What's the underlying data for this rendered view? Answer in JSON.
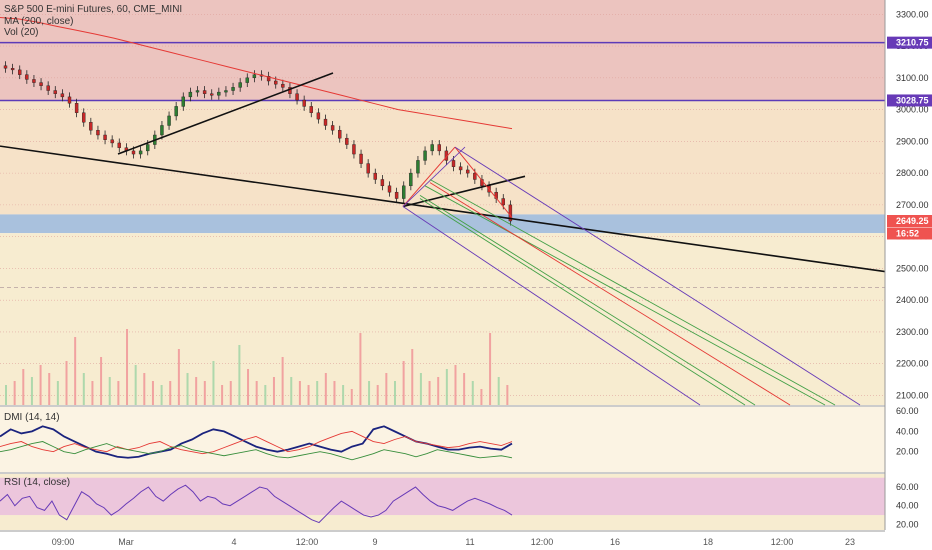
{
  "header": {
    "symbol_line": "S&P 500 E-mini Futures, 60, CME_MINI",
    "ma_label": "MA (200, close)",
    "vol_label": "Vol (20)"
  },
  "chart_data": [
    {
      "type": "candlestick",
      "title": "S&P 500 E-mini Futures, 60, CME_MINI",
      "price_axis_ticks": [
        3300,
        3200,
        3100,
        3000,
        2900,
        2800,
        2700,
        2600,
        2500,
        2400,
        2300,
        2200,
        2100
      ],
      "ylim": [
        2070,
        3345
      ],
      "price_tags": [
        {
          "label": "3210.75",
          "value": 3210.75,
          "color": "#673ab7"
        },
        {
          "label": "3028.75",
          "value": 3028.75,
          "color": "#673ab7"
        },
        {
          "label": "2649.25",
          "value": 2649.25,
          "color": "#ef5350"
        },
        {
          "label": "16:52",
          "value": 2610,
          "color": "#ef5350"
        }
      ],
      "horizontal_levels": [
        {
          "value": 3210.75,
          "color": "#5c3bb8",
          "style": "solid"
        },
        {
          "value": 3028.75,
          "color": "#5c3bb8",
          "style": "solid"
        }
      ],
      "zones": [
        {
          "from": 3028.75,
          "to": 3345,
          "color": "#ecc4bf"
        },
        {
          "from": 2670,
          "to": 3028.75,
          "color": "#f6e2c8"
        },
        {
          "from": 2611,
          "to": 2670,
          "color": "#a9c1dd"
        },
        {
          "from": 2310,
          "to": 2405,
          "color": "#a9c1dd"
        },
        {
          "from": 2070,
          "to": 2611,
          "color": "#f7ecd0"
        }
      ],
      "candles_close": [
        3130,
        3125,
        3110,
        3095,
        3085,
        3075,
        3060,
        3050,
        3040,
        3020,
        2990,
        2960,
        2935,
        2920,
        2905,
        2895,
        2880,
        2870,
        2860,
        2870,
        2890,
        2920,
        2950,
        2980,
        3010,
        3040,
        3055,
        3060,
        3050,
        3045,
        3055,
        3060,
        3070,
        3085,
        3100,
        3110,
        3105,
        3090,
        3080,
        3070,
        3050,
        3030,
        3010,
        2990,
        2970,
        2950,
        2935,
        2910,
        2890,
        2860,
        2830,
        2800,
        2780,
        2760,
        2740,
        2720,
        2760,
        2800,
        2840,
        2870,
        2890,
        2870,
        2840,
        2820,
        2810,
        2800,
        2780,
        2760,
        2740,
        2720,
        2700,
        2649.25
      ],
      "ma200": [
        3290,
        3285,
        3275,
        3262,
        3250,
        3238,
        3225,
        3210,
        3195,
        3180,
        3165,
        3150,
        3135,
        3120,
        3105,
        3090,
        3075,
        3060,
        3045,
        3030,
        3015,
        3000,
        2990,
        2980,
        2970,
        2960,
        2950,
        2940
      ],
      "volume": [
        0.25,
        0.3,
        0.45,
        0.35,
        0.5,
        0.4,
        0.3,
        0.55,
        0.85,
        0.4,
        0.3,
        0.6,
        0.35,
        0.3,
        0.95,
        0.5,
        0.4,
        0.3,
        0.25,
        0.3,
        0.7,
        0.4,
        0.35,
        0.3,
        0.55,
        0.25,
        0.3,
        0.75,
        0.45,
        0.3,
        0.25,
        0.35,
        0.6,
        0.35,
        0.3,
        0.25,
        0.3,
        0.4,
        0.3,
        0.25,
        0.2,
        0.9,
        0.3,
        0.25,
        0.4,
        0.3,
        0.55,
        0.7,
        0.4,
        0.3,
        0.35,
        0.45,
        0.5,
        0.4,
        0.3,
        0.2,
        0.9,
        0.35,
        0.25
      ]
    },
    {
      "type": "line",
      "title": "DMI (14, 14)",
      "axis_ticks": [
        60.0,
        40.0,
        20.0
      ],
      "ylim": [
        0,
        64
      ],
      "series": [
        {
          "color": "#1a237e",
          "values": [
            35,
            42,
            38,
            40,
            45,
            42,
            35,
            30,
            25,
            20,
            18,
            15,
            14,
            15,
            18,
            20,
            22,
            28,
            32,
            38,
            42,
            40,
            35,
            30,
            25,
            22,
            20,
            22,
            25,
            28,
            25,
            22,
            20,
            25,
            28,
            42,
            45,
            40,
            35,
            30,
            28,
            25,
            22,
            22,
            24,
            25,
            23,
            22,
            28
          ]
        },
        {
          "color": "#e53935",
          "values": [
            25,
            28,
            30,
            25,
            22,
            20,
            25,
            28,
            24,
            22,
            20,
            25,
            22,
            24,
            28,
            30,
            25,
            22,
            20,
            18,
            20,
            24,
            28,
            32,
            35,
            30,
            25,
            20,
            22,
            25,
            30,
            34,
            38,
            40,
            35,
            30,
            28,
            32,
            35,
            30,
            28,
            26,
            24,
            25,
            28,
            30,
            28,
            26,
            30
          ]
        },
        {
          "color": "#388e3c",
          "values": [
            20,
            22,
            25,
            28,
            30,
            25,
            20,
            18,
            22,
            25,
            28,
            24,
            22,
            20,
            18,
            20,
            24,
            26,
            22,
            20,
            18,
            16,
            18,
            20,
            22,
            18,
            15,
            14,
            16,
            18,
            20,
            18,
            15,
            12,
            15,
            18,
            22,
            20,
            18,
            15,
            18,
            22,
            20,
            18,
            16,
            14,
            15,
            16,
            14
          ]
        }
      ]
    },
    {
      "type": "line",
      "title": "RSI (14, close)",
      "axis_ticks": [
        60.0,
        40.0,
        20.0
      ],
      "ylim": [
        14,
        74
      ],
      "band": [
        30,
        70
      ],
      "series": [
        {
          "color": "#673ab7",
          "values": [
            45,
            52,
            40,
            48,
            50,
            38,
            35,
            45,
            30,
            25,
            40,
            55,
            50,
            42,
            38,
            30,
            35,
            42,
            48,
            55,
            60,
            50,
            45,
            52,
            58,
            62,
            55,
            45,
            50,
            48,
            42,
            40,
            45,
            50,
            55,
            60,
            58,
            50,
            45,
            40,
            35,
            30,
            25,
            22,
            30,
            38,
            45,
            40,
            35,
            30,
            28,
            30,
            35,
            45,
            50,
            55,
            60,
            52,
            45,
            40,
            38,
            35,
            40,
            45,
            48,
            45,
            42,
            38,
            35,
            30
          ]
        }
      ]
    }
  ],
  "x_axis": {
    "ticks": [
      "09:00",
      "Mar",
      "4",
      "12:00",
      "9",
      "11",
      "12:00",
      "16",
      "18",
      "12:00",
      "23"
    ]
  }
}
